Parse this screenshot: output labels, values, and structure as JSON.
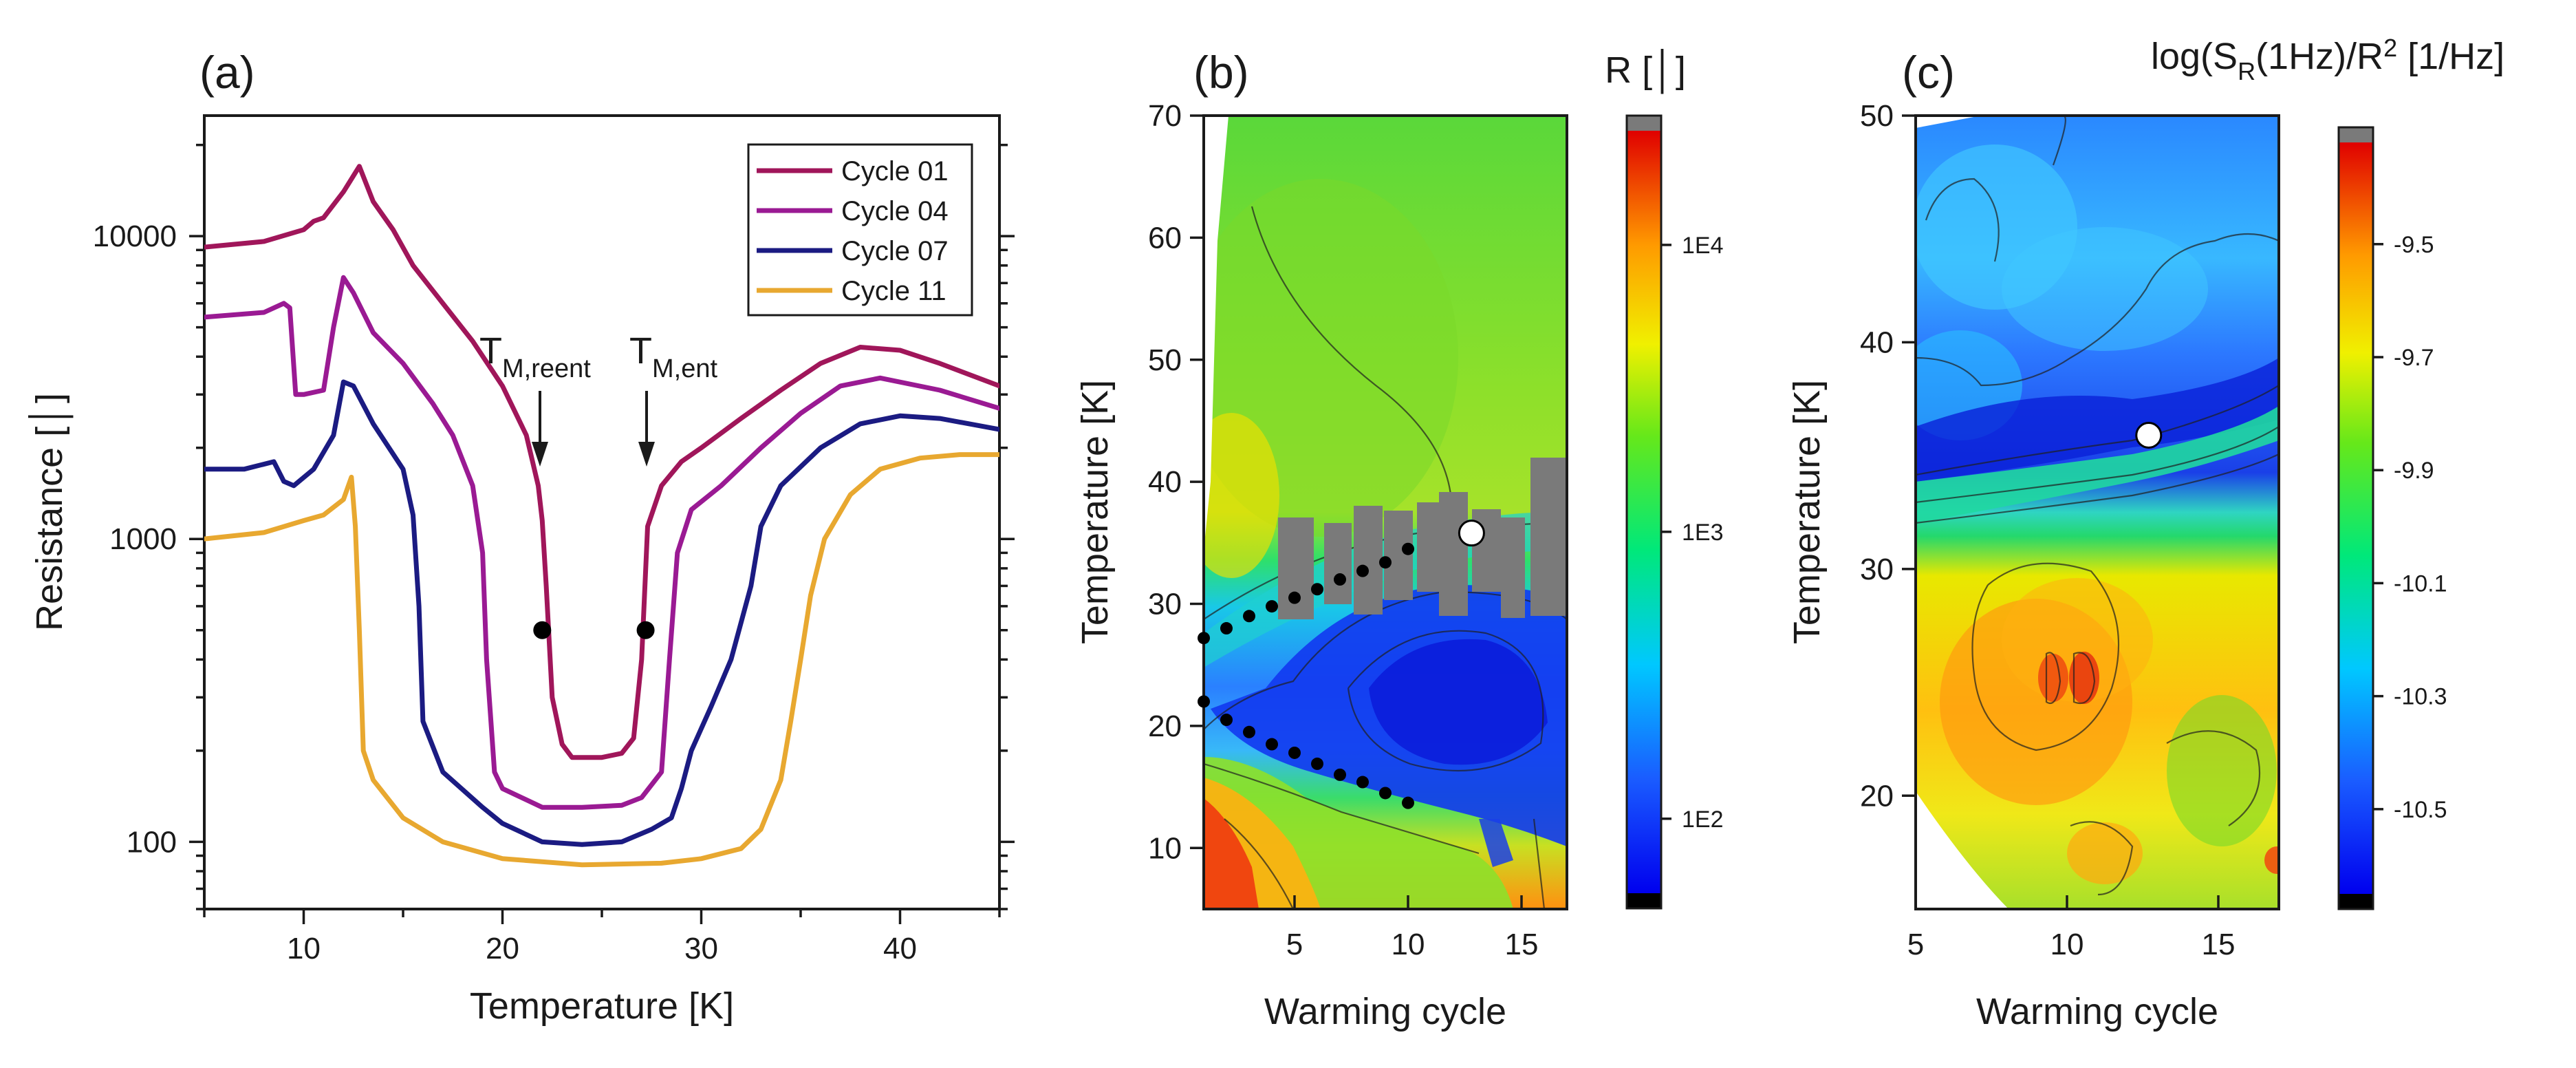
{
  "chart_data": [
    {
      "panel": "a",
      "panel_label": "(a)",
      "type": "line",
      "xlabel": "Temperature [K]",
      "ylabel": "Resistance [│]",
      "xlim": [
        5,
        45
      ],
      "ylim": [
        60,
        25000
      ],
      "yscale": "log",
      "xticks": [
        10,
        20,
        30,
        40
      ],
      "xtick_labels": [
        "10",
        "20",
        "30",
        "40"
      ],
      "yticks": [
        100,
        1000,
        10000
      ],
      "ytick_labels": [
        "100",
        "1000",
        "10000"
      ],
      "legend_position": "top-right",
      "series": [
        {
          "name": "Cycle 01",
          "color": "#a0165a",
          "points": [
            [
              5,
              9200
            ],
            [
              8,
              9600
            ],
            [
              10,
              10500
            ],
            [
              10.5,
              11200
            ],
            [
              11,
              11500
            ],
            [
              12,
              14000
            ],
            [
              12.8,
              17000
            ],
            [
              13.5,
              13000
            ],
            [
              14.5,
              10500
            ],
            [
              15.5,
              8000
            ],
            [
              17,
              6000
            ],
            [
              18.5,
              4500
            ],
            [
              20,
              3200
            ],
            [
              21.2,
              2200
            ],
            [
              21.8,
              1500
            ],
            [
              22,
              1150
            ],
            [
              22.2,
              700
            ],
            [
              22.5,
              300
            ],
            [
              23,
              210
            ],
            [
              23.5,
              190
            ],
            [
              25,
              190
            ],
            [
              26,
              196
            ],
            [
              26.6,
              220
            ],
            [
              27,
              400
            ],
            [
              27.3,
              1100
            ],
            [
              28,
              1500
            ],
            [
              29,
              1800
            ],
            [
              30,
              2000
            ],
            [
              32,
              2500
            ],
            [
              34,
              3100
            ],
            [
              36,
              3800
            ],
            [
              38,
              4300
            ],
            [
              40,
              4200
            ],
            [
              42,
              3800
            ],
            [
              45,
              3200
            ]
          ]
        },
        {
          "name": "Cycle 04",
          "color": "#9a1a93",
          "points": [
            [
              5,
              5400
            ],
            [
              8,
              5600
            ],
            [
              9,
              6000
            ],
            [
              9.3,
              5800
            ],
            [
              9.6,
              3000
            ],
            [
              10,
              3000
            ],
            [
              11,
              3100
            ],
            [
              11.5,
              5000
            ],
            [
              12,
              7300
            ],
            [
              12.5,
              6500
            ],
            [
              13.5,
              4800
            ],
            [
              15,
              3800
            ],
            [
              16.5,
              2800
            ],
            [
              17.5,
              2200
            ],
            [
              18.5,
              1500
            ],
            [
              19,
              900
            ],
            [
              19.2,
              400
            ],
            [
              19.6,
              170
            ],
            [
              20,
              150
            ],
            [
              22,
              130
            ],
            [
              24,
              130
            ],
            [
              26,
              132
            ],
            [
              27,
              140
            ],
            [
              28,
              170
            ],
            [
              28.4,
              400
            ],
            [
              28.8,
              900
            ],
            [
              29.5,
              1250
            ],
            [
              31,
              1500
            ],
            [
              33,
              2000
            ],
            [
              35,
              2600
            ],
            [
              37,
              3200
            ],
            [
              39,
              3400
            ],
            [
              42,
              3100
            ],
            [
              45,
              2700
            ]
          ]
        },
        {
          "name": "Cycle 07",
          "color": "#1b1b82",
          "points": [
            [
              5,
              1700
            ],
            [
              7,
              1700
            ],
            [
              8.5,
              1800
            ],
            [
              9,
              1550
            ],
            [
              9.5,
              1500
            ],
            [
              10.5,
              1700
            ],
            [
              11.5,
              2200
            ],
            [
              12,
              3300
            ],
            [
              12.5,
              3200
            ],
            [
              13.5,
              2400
            ],
            [
              15,
              1700
            ],
            [
              15.5,
              1200
            ],
            [
              15.8,
              600
            ],
            [
              16,
              250
            ],
            [
              17,
              170
            ],
            [
              19,
              130
            ],
            [
              20,
              115
            ],
            [
              22,
              100
            ],
            [
              24,
              98
            ],
            [
              26,
              100
            ],
            [
              27.5,
              110
            ],
            [
              28.5,
              120
            ],
            [
              29,
              150
            ],
            [
              29.5,
              200
            ],
            [
              30.5,
              280
            ],
            [
              31.5,
              400
            ],
            [
              32.5,
              700
            ],
            [
              33,
              1100
            ],
            [
              34,
              1500
            ],
            [
              36,
              2000
            ],
            [
              38,
              2400
            ],
            [
              40,
              2550
            ],
            [
              42,
              2500
            ],
            [
              45,
              2300
            ]
          ]
        },
        {
          "name": "Cycle 11",
          "color": "#e8a830",
          "points": [
            [
              5,
              1000
            ],
            [
              8,
              1050
            ],
            [
              10,
              1150
            ],
            [
              11,
              1200
            ],
            [
              12,
              1350
            ],
            [
              12.4,
              1600
            ],
            [
              12.6,
              1100
            ],
            [
              12.8,
              500
            ],
            [
              13,
              200
            ],
            [
              13.5,
              160
            ],
            [
              15,
              120
            ],
            [
              17,
              100
            ],
            [
              20,
              88
            ],
            [
              24,
              84
            ],
            [
              28,
              85
            ],
            [
              30,
              88
            ],
            [
              32,
              95
            ],
            [
              33,
              110
            ],
            [
              34,
              160
            ],
            [
              34.5,
              250
            ],
            [
              35,
              400
            ],
            [
              35.5,
              650
            ],
            [
              36.2,
              1000
            ],
            [
              37.5,
              1400
            ],
            [
              39,
              1700
            ],
            [
              41,
              1850
            ],
            [
              43,
              1900
            ],
            [
              45,
              1900
            ]
          ]
        }
      ],
      "annotations": [
        {
          "text": "T",
          "subscript": "M,reent",
          "x": 22,
          "y": 500
        },
        {
          "text": "T",
          "subscript": "M,ent",
          "x": 27.2,
          "y": 500
        }
      ],
      "markers": [
        [
          22,
          500
        ],
        [
          27.2,
          500
        ]
      ]
    },
    {
      "panel": "b",
      "panel_label": "(b)",
      "type": "heatmap",
      "xlabel": "Warming cycle",
      "ylabel": "Temperature [K]",
      "colorbar_title": "R [│]",
      "colorbar_scale": "log",
      "colorbar_range": [
        55,
        25000
      ],
      "colorbar_ticks": [
        100,
        1000,
        10000
      ],
      "colorbar_tick_labels": [
        "1E2",
        "1E3",
        "1E4"
      ],
      "xlim": [
        1,
        17
      ],
      "ylim": [
        5,
        70
      ],
      "xticks": [
        5,
        10,
        15
      ],
      "xtick_labels": [
        "5",
        "10",
        "15"
      ],
      "yticks": [
        10,
        20,
        30,
        40,
        50,
        60,
        70
      ],
      "ytick_labels": [
        "10",
        "20",
        "30",
        "40",
        "50",
        "60",
        "70"
      ],
      "transition_upper": [
        [
          1,
          27.2
        ],
        [
          2,
          28
        ],
        [
          3,
          29
        ],
        [
          4,
          29.8
        ],
        [
          5,
          30.5
        ],
        [
          6,
          31.2
        ],
        [
          7,
          32
        ],
        [
          8,
          32.7
        ],
        [
          9,
          33.4
        ],
        [
          10,
          34.5
        ]
      ],
      "transition_lower": [
        [
          1,
          22
        ],
        [
          2,
          20.5
        ],
        [
          3,
          19.5
        ],
        [
          4,
          18.5
        ],
        [
          5,
          17.8
        ],
        [
          6,
          16.9
        ],
        [
          7,
          16
        ],
        [
          8,
          15.4
        ],
        [
          9,
          14.5
        ],
        [
          10,
          13.7
        ]
      ],
      "open_marker": [
        12.8,
        35.8
      ]
    },
    {
      "panel": "c",
      "panel_label": "(c)",
      "type": "heatmap",
      "xlabel": "Warming cycle",
      "ylabel": "Temperature [K]",
      "colorbar_title": "log(S_R(1Hz)/R^2) [1/Hz]",
      "colorbar_range": [
        -10.65,
        -9.32
      ],
      "colorbar_ticks": [
        -9.5,
        -9.7,
        -9.9,
        -10.1,
        -10.3,
        -10.5
      ],
      "colorbar_tick_labels": [
        "-9.5",
        "-9.7",
        "-9.9",
        "-10.1",
        "-10.3",
        "-10.5"
      ],
      "xlim": [
        5,
        17
      ],
      "ylim": [
        15,
        50
      ],
      "xticks": [
        5,
        10,
        15
      ],
      "xtick_labels": [
        "5",
        "10",
        "15"
      ],
      "yticks": [
        20,
        30,
        40,
        50
      ],
      "ytick_labels": [
        "20",
        "30",
        "40",
        "50"
      ],
      "open_marker": [
        12.7,
        35.9
      ]
    }
  ]
}
